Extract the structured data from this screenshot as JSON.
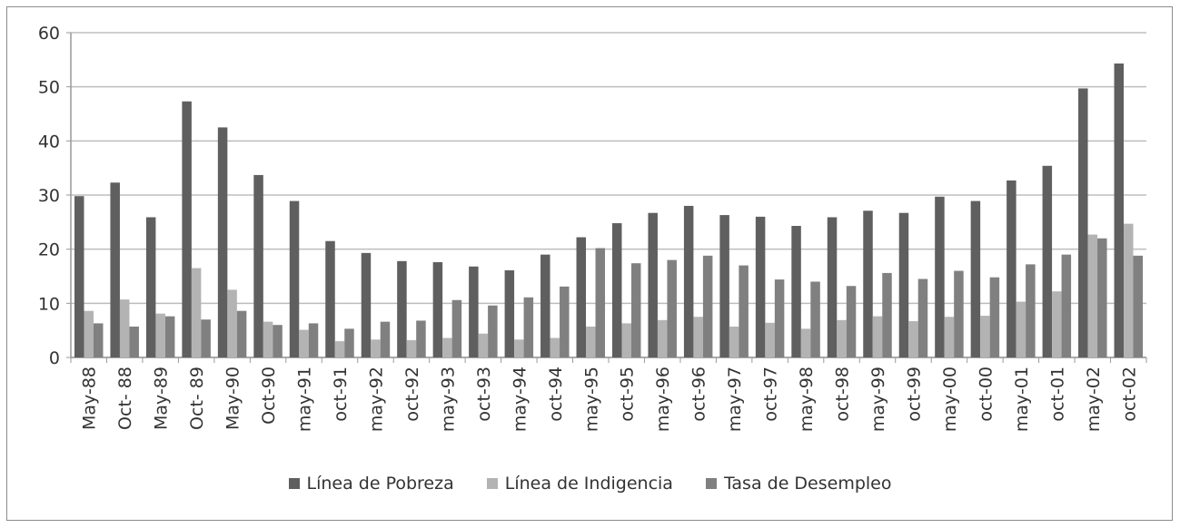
{
  "chart_data": {
    "type": "bar",
    "categories": [
      "May-88",
      "Oct- 88",
      "May-89",
      "Oct- 89",
      "May-90",
      "Oct-90",
      "may-91",
      "oct-91",
      "may-92",
      "oct-92",
      "may-93",
      "oct-93",
      "may-94",
      "oct-94",
      "may-95",
      "oct-95",
      "may-96",
      "oct-96",
      "may-97",
      "oct-97",
      "may-98",
      "oct-98",
      "may-99",
      "oct-99",
      "may-00",
      "oct-00",
      "may-01",
      "oct-01",
      "may-02",
      "oct-02"
    ],
    "series": [
      {
        "name": "Línea de Pobreza",
        "color": "#5f5f5f",
        "values": [
          29.8,
          32.3,
          25.9,
          47.3,
          42.5,
          33.7,
          28.9,
          21.5,
          19.3,
          17.8,
          17.6,
          16.8,
          16.1,
          19.0,
          22.2,
          24.8,
          26.7,
          28.0,
          26.3,
          26.0,
          24.3,
          25.9,
          27.1,
          26.7,
          29.7,
          28.9,
          32.7,
          35.4,
          49.7,
          54.3
        ]
      },
      {
        "name": "Línea de Indigencia",
        "color": "#b3b3b3",
        "values": [
          8.6,
          10.7,
          8.1,
          16.5,
          12.5,
          6.6,
          5.1,
          3.0,
          3.3,
          3.2,
          3.6,
          4.4,
          3.3,
          3.6,
          5.7,
          6.3,
          6.9,
          7.5,
          5.7,
          6.4,
          5.3,
          6.9,
          7.6,
          6.7,
          7.5,
          7.7,
          10.3,
          12.2,
          22.7,
          24.7
        ]
      },
      {
        "name": "Tasa de Desempleo",
        "color": "#808080",
        "values": [
          6.3,
          5.7,
          7.6,
          7.0,
          8.6,
          6.0,
          6.3,
          5.3,
          6.6,
          6.8,
          10.6,
          9.6,
          11.1,
          13.1,
          20.2,
          17.4,
          18.0,
          18.8,
          17.0,
          14.4,
          14.0,
          13.2,
          15.6,
          14.5,
          16.0,
          14.8,
          17.2,
          19.0,
          22.0,
          18.8
        ]
      }
    ],
    "yticks": [
      "0",
      "10",
      "20",
      "30",
      "40",
      "50",
      "60"
    ],
    "ylim": [
      0,
      60
    ],
    "grid": true,
    "legend": "bottom",
    "title": "",
    "xlabel": "",
    "ylabel": ""
  }
}
